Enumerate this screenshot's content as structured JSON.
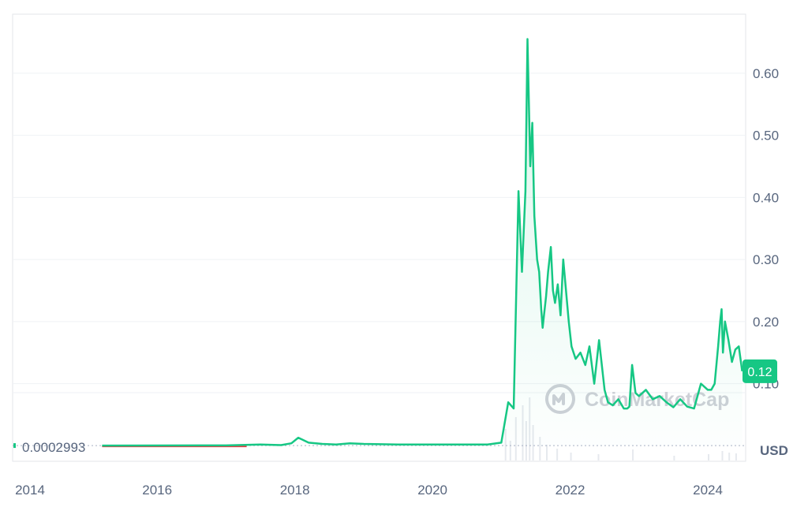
{
  "colors": {
    "line": "#16c784",
    "area_top": "#16c784",
    "grid": "#eff2f5",
    "axis_text": "#58667e",
    "baseline_line": "#ea3943",
    "badge_bg": "#16c784",
    "watermark": "#c9ccd3",
    "volume": "#e6e9ee"
  },
  "watermark": {
    "text": "CoinMarketCap",
    "icon": "coinmarketcap-logo-icon"
  },
  "unit_label": "USD",
  "current_price_badge": "0.12",
  "baseline_label": "0.0002993",
  "chart_data": {
    "type": "area",
    "title": "",
    "xlabel": "",
    "ylabel": "",
    "y_tick_labels": [
      "0.60",
      "0.50",
      "0.40",
      "0.30",
      "0.20",
      "0.10"
    ],
    "y_ticks": [
      0.6,
      0.5,
      0.4,
      0.3,
      0.2,
      0.1
    ],
    "ylim": [
      -0.025,
      0.695
    ],
    "x_tick_labels": [
      "2014",
      "2016",
      "2018",
      "2020",
      "2022",
      "2024"
    ],
    "x_ticks": [
      2014,
      2016,
      2018,
      2020,
      2022,
      2024
    ],
    "xlim": [
      2013.9,
      2024.55
    ],
    "grid": true,
    "baseline_value": 0.0002993,
    "current_value": 0.12,
    "series": [
      {
        "x": [
          2015.2,
          2016.0,
          2017.0,
          2017.5,
          2017.8,
          2017.95,
          2018.05,
          2018.2,
          2018.4,
          2018.6,
          2018.8,
          2019.0,
          2019.5,
          2020.0,
          2020.5,
          2020.8,
          2021.0,
          2021.1,
          2021.18,
          2021.25,
          2021.3,
          2021.35,
          2021.38,
          2021.42,
          2021.45,
          2021.48,
          2021.52,
          2021.55,
          2021.58,
          2021.6,
          2021.62,
          2021.65,
          2021.68,
          2021.72,
          2021.75,
          2021.78,
          2021.82,
          2021.86,
          2021.9,
          2021.94,
          2021.98,
          2022.02,
          2022.08,
          2022.15,
          2022.22,
          2022.28,
          2022.35,
          2022.42,
          2022.5,
          2022.55,
          2022.62,
          2022.7,
          2022.78,
          2022.83,
          2022.86,
          2022.9,
          2022.95,
          2023.0,
          2023.1,
          2023.2,
          2023.3,
          2023.4,
          2023.5,
          2023.6,
          2023.7,
          2023.8,
          2023.9,
          2024.0,
          2024.05,
          2024.1,
          2024.15,
          2024.18,
          2024.2,
          2024.22,
          2024.25,
          2024.3,
          2024.35,
          2024.4,
          2024.45,
          2024.5
        ],
        "values": [
          0.0003,
          0.0004,
          0.0005,
          0.002,
          0.001,
          0.004,
          0.013,
          0.005,
          0.003,
          0.002,
          0.004,
          0.003,
          0.002,
          0.002,
          0.002,
          0.002,
          0.005,
          0.07,
          0.06,
          0.41,
          0.28,
          0.41,
          0.655,
          0.45,
          0.52,
          0.37,
          0.3,
          0.28,
          0.22,
          0.19,
          0.21,
          0.24,
          0.28,
          0.32,
          0.25,
          0.23,
          0.26,
          0.21,
          0.3,
          0.25,
          0.2,
          0.16,
          0.14,
          0.15,
          0.13,
          0.16,
          0.1,
          0.17,
          0.09,
          0.07,
          0.065,
          0.075,
          0.06,
          0.06,
          0.063,
          0.13,
          0.085,
          0.08,
          0.09,
          0.075,
          0.08,
          0.07,
          0.062,
          0.075,
          0.063,
          0.06,
          0.1,
          0.09,
          0.09,
          0.1,
          0.16,
          0.2,
          0.22,
          0.15,
          0.2,
          0.17,
          0.135,
          0.155,
          0.16,
          0.12
        ]
      }
    ]
  }
}
